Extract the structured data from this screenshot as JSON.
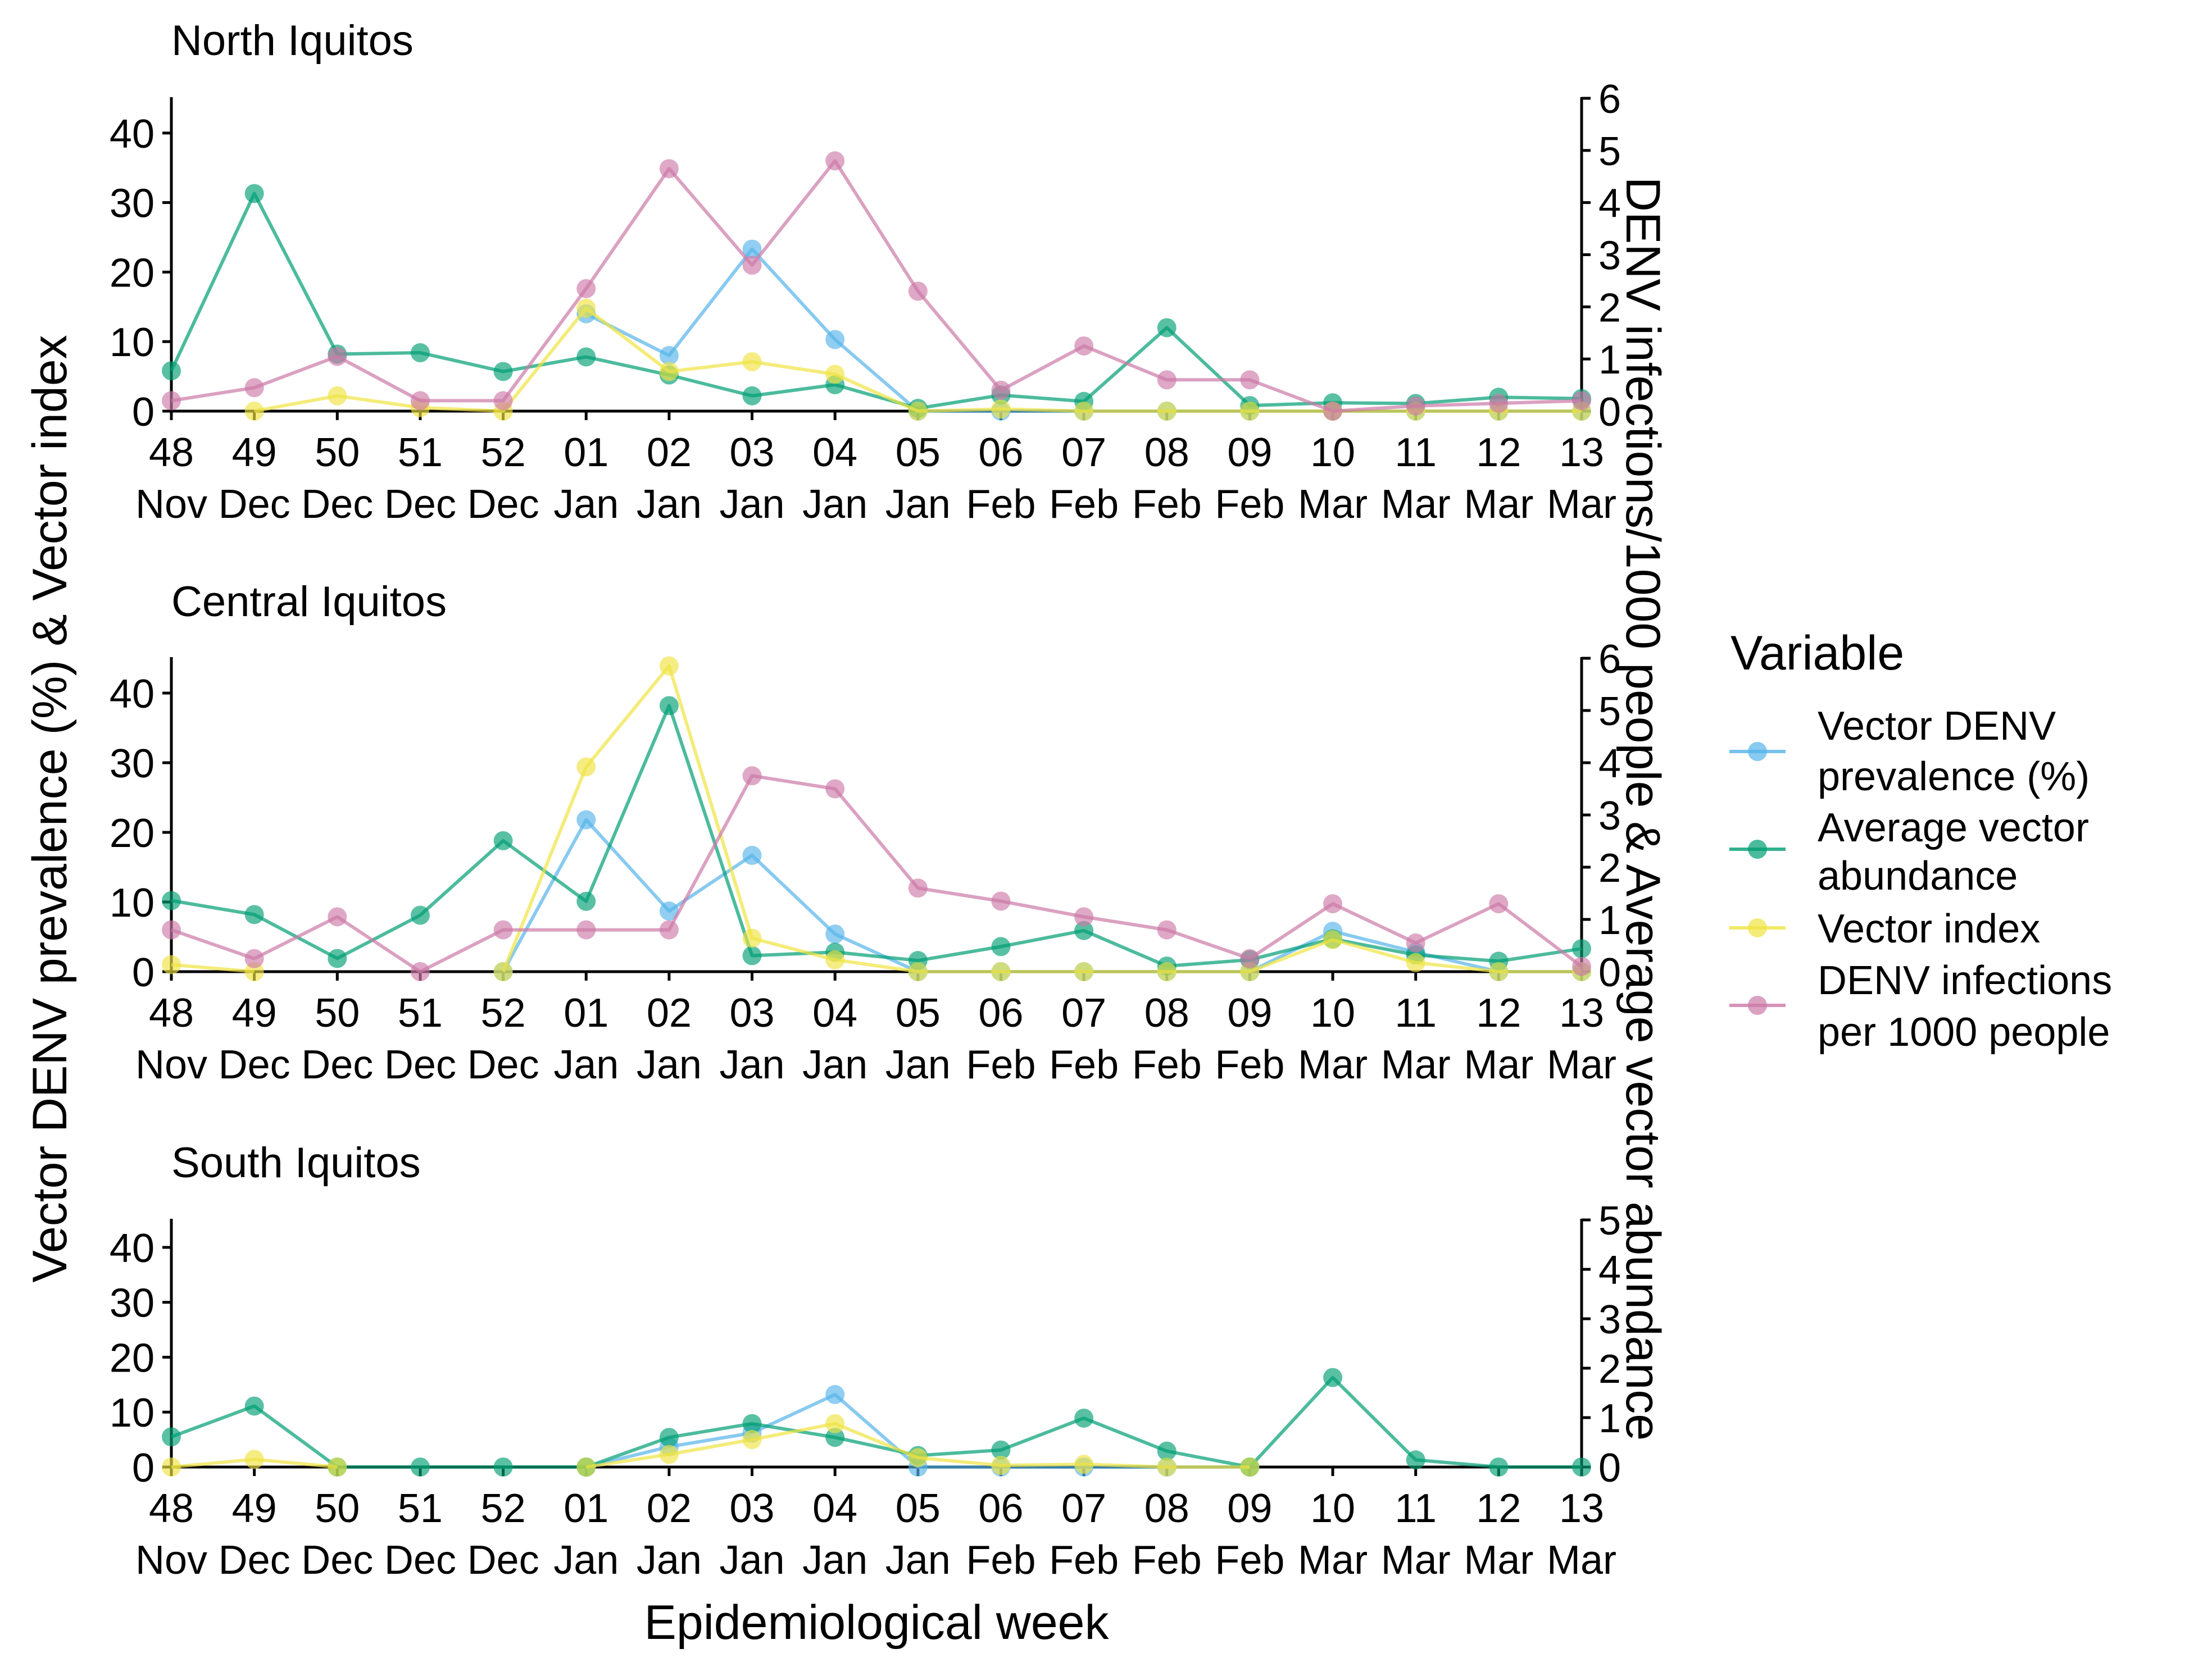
{
  "figure": {
    "ylabel_left": "Vector DENV prevalence (%) & Vector index",
    "ylabel_right": "DENV infections/1000 people & Average vector abundance",
    "xlabel": "Epidemiological week",
    "legend_title": "Variable"
  },
  "chart_data": [
    {
      "type": "line",
      "title": "North Iquitos",
      "categories": [
        "48 Nov",
        "49 Dec",
        "50 Dec",
        "51 Dec",
        "52 Dec",
        "01 Jan",
        "02 Jan",
        "03 Jan",
        "04 Jan",
        "05 Jan",
        "06 Feb",
        "07 Feb",
        "08 Feb",
        "09 Feb",
        "10 Mar",
        "11 Mar",
        "12 Mar",
        "13 Mar"
      ],
      "tick_week": [
        "48",
        "49",
        "50",
        "51",
        "52",
        "01",
        "02",
        "03",
        "04",
        "05",
        "06",
        "07",
        "08",
        "09",
        "10",
        "11",
        "12",
        "13"
      ],
      "tick_month": [
        "Nov",
        "Dec",
        "Dec",
        "Dec",
        "Dec",
        "Jan",
        "Jan",
        "Jan",
        "Jan",
        "Jan",
        "Feb",
        "Feb",
        "Feb",
        "Feb",
        "Mar",
        "Mar",
        "Mar",
        "Mar"
      ],
      "ylim_left": [
        0,
        45
      ],
      "yticks_left": [
        0,
        10,
        20,
        30,
        40
      ],
      "ylim_right": [
        0,
        6
      ],
      "yticks_right": [
        0,
        1,
        2,
        3,
        4,
        5,
        6
      ],
      "series": [
        {
          "name": "Vector DENV prevalence (%)",
          "axis": "left",
          "color": "#56B4E9",
          "values": [
            null,
            null,
            null,
            null,
            null,
            14,
            8,
            23.3,
            10.3,
            0,
            0,
            0,
            0,
            0,
            0,
            0,
            0,
            0
          ]
        },
        {
          "name": "Average vector abundance",
          "axis": "left",
          "color": "#009E73",
          "values": [
            5.8,
            31.3,
            8.2,
            8.4,
            5.7,
            7.8,
            5.2,
            2.2,
            3.8,
            0.4,
            2.3,
            1.4,
            12,
            0.8,
            1.2,
            1.1,
            2,
            1.8
          ]
        },
        {
          "name": "Vector index",
          "axis": "left",
          "color": "#F0E442",
          "values": [
            null,
            0,
            2.2,
            0.5,
            0,
            14.8,
            5.7,
            7.1,
            5.3,
            0,
            0.3,
            0,
            0,
            0,
            0,
            0,
            0,
            0
          ]
        },
        {
          "name": "DENV infections per 1000 people",
          "axis": "right",
          "color": "#CC79A7",
          "values": [
            0.2,
            0.45,
            1.05,
            0.2,
            0.2,
            2.35,
            4.65,
            2.8,
            4.8,
            2.3,
            0.4,
            1.25,
            0.6,
            0.6,
            0,
            0.1,
            0.15,
            0.2
          ]
        }
      ]
    },
    {
      "type": "line",
      "title": "Central Iquitos",
      "categories": [
        "48 Nov",
        "49 Dec",
        "50 Dec",
        "51 Dec",
        "52 Dec",
        "01 Jan",
        "02 Jan",
        "03 Jan",
        "04 Jan",
        "05 Jan",
        "06 Feb",
        "07 Feb",
        "08 Feb",
        "09 Feb",
        "10 Mar",
        "11 Mar",
        "12 Mar",
        "13 Mar"
      ],
      "tick_week": [
        "48",
        "49",
        "50",
        "51",
        "52",
        "01",
        "02",
        "03",
        "04",
        "05",
        "06",
        "07",
        "08",
        "09",
        "10",
        "11",
        "12",
        "13"
      ],
      "tick_month": [
        "Nov",
        "Dec",
        "Dec",
        "Dec",
        "Dec",
        "Jan",
        "Jan",
        "Jan",
        "Jan",
        "Jan",
        "Feb",
        "Feb",
        "Feb",
        "Feb",
        "Mar",
        "Mar",
        "Mar",
        "Mar"
      ],
      "ylim_left": [
        0,
        45
      ],
      "yticks_left": [
        0,
        10,
        20,
        30,
        40
      ],
      "ylim_right": [
        0,
        6
      ],
      "yticks_right": [
        0,
        1,
        2,
        3,
        4,
        5,
        6
      ],
      "series": [
        {
          "name": "Vector DENV prevalence (%)",
          "axis": "left",
          "color": "#56B4E9",
          "values": [
            null,
            null,
            null,
            null,
            0,
            21.8,
            8.7,
            16.7,
            5.4,
            0,
            0,
            0,
            0,
            0,
            5.8,
            2.8,
            0,
            0
          ]
        },
        {
          "name": "Average vector abundance",
          "axis": "left",
          "color": "#009E73",
          "values": [
            10.2,
            8.2,
            1.9,
            8.1,
            18.8,
            10.1,
            38.2,
            2.3,
            2.8,
            1.6,
            3.6,
            5.9,
            0.8,
            1.7,
            4.7,
            2.4,
            1.5,
            3.3
          ]
        },
        {
          "name": "Vector index",
          "axis": "left",
          "color": "#F0E442",
          "values": [
            1,
            0,
            null,
            null,
            0,
            29.4,
            43.9,
            4.8,
            1.7,
            0,
            0,
            0,
            0,
            0,
            4.6,
            1.3,
            0,
            0
          ]
        },
        {
          "name": "DENV infections per 1000 people",
          "axis": "right",
          "color": "#CC79A7",
          "values": [
            0.8,
            0.25,
            1.05,
            0,
            0.8,
            0.8,
            0.8,
            3.75,
            3.5,
            1.6,
            1.35,
            1.05,
            0.8,
            0.25,
            1.3,
            0.55,
            1.3,
            0.1
          ]
        }
      ]
    },
    {
      "type": "line",
      "title": "South Iquitos",
      "categories": [
        "48 Nov",
        "49 Dec",
        "50 Dec",
        "51 Dec",
        "52 Dec",
        "01 Jan",
        "02 Jan",
        "03 Jan",
        "04 Jan",
        "05 Jan",
        "06 Feb",
        "07 Feb",
        "08 Feb",
        "09 Feb",
        "10 Mar",
        "11 Mar",
        "12 Mar",
        "13 Mar"
      ],
      "tick_week": [
        "48",
        "49",
        "50",
        "51",
        "52",
        "01",
        "02",
        "03",
        "04",
        "05",
        "06",
        "07",
        "08",
        "09",
        "10",
        "11",
        "12",
        "13"
      ],
      "tick_month": [
        "Nov",
        "Dec",
        "Dec",
        "Dec",
        "Dec",
        "Jan",
        "Jan",
        "Jan",
        "Jan",
        "Jan",
        "Feb",
        "Feb",
        "Feb",
        "Feb",
        "Mar",
        "Mar",
        "Mar",
        "Mar"
      ],
      "ylim_left": [
        0,
        45
      ],
      "yticks_left": [
        0,
        10,
        20,
        30,
        40
      ],
      "ylim_right": [
        0,
        5
      ],
      "yticks_right": [
        0,
        1,
        2,
        3,
        4,
        5
      ],
      "series": [
        {
          "name": "Vector DENV prevalence (%)",
          "axis": "left",
          "color": "#56B4E9",
          "values": [
            null,
            null,
            null,
            null,
            null,
            0,
            3.7,
            6.2,
            13.2,
            0,
            0,
            0,
            0,
            0,
            null,
            null,
            null,
            null
          ]
        },
        {
          "name": "Average vector abundance",
          "axis": "left",
          "color": "#009E73",
          "values": [
            5.5,
            11.1,
            0,
            0,
            0,
            0,
            5.4,
            7.9,
            5.4,
            2.1,
            3.1,
            8.9,
            2.9,
            0,
            16.3,
            1.3,
            0,
            0
          ]
        },
        {
          "name": "Vector index",
          "axis": "left",
          "color": "#F0E442",
          "values": [
            0,
            1.4,
            0,
            null,
            null,
            0,
            2.3,
            5,
            7.9,
            1.7,
            0.3,
            0.5,
            0,
            0,
            null,
            null,
            null,
            null
          ]
        },
        {
          "name": "DENV infections per 1000 people",
          "axis": "right",
          "color": "#CC79A7",
          "values": [
            null,
            null,
            null,
            null,
            null,
            null,
            null,
            null,
            null,
            null,
            null,
            null,
            null,
            null,
            null,
            null,
            null,
            null
          ]
        }
      ]
    }
  ]
}
